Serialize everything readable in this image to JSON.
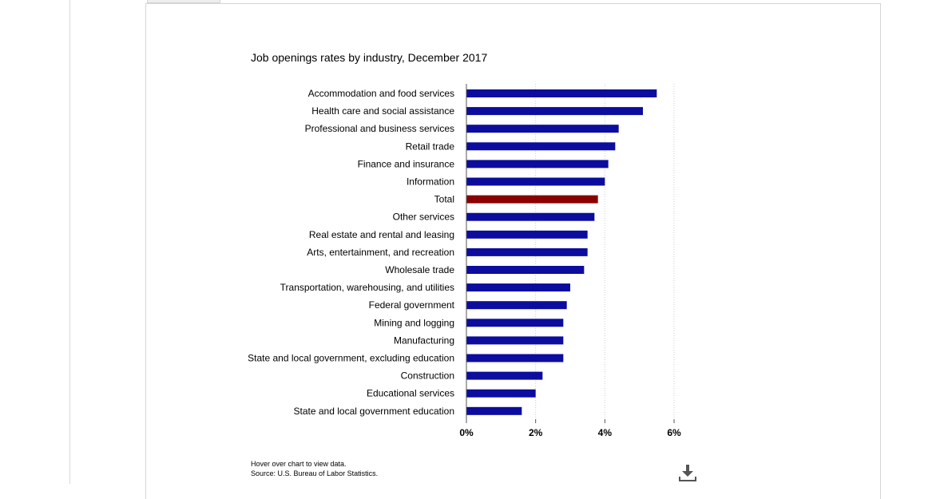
{
  "chart_data": {
    "type": "bar",
    "orientation": "horizontal",
    "title": "Job openings rates by industry, December 2017",
    "categories": [
      "Accommodation and food services",
      "Health care and social assistance",
      "Professional and business services",
      "Retail trade",
      "Finance and insurance",
      "Information",
      "Total",
      "Other services",
      "Real estate and rental and leasing",
      "Arts, entertainment, and recreation",
      "Wholesale trade",
      "Transportation, warehousing, and utilities",
      "Federal government",
      "Mining and logging",
      "Manufacturing",
      "State and local government, excluding education",
      "Construction",
      "Educational services",
      "State and local government education"
    ],
    "values": [
      5.5,
      5.1,
      4.4,
      4.3,
      4.1,
      4.0,
      3.8,
      3.7,
      3.5,
      3.5,
      3.4,
      3.0,
      2.9,
      2.8,
      2.8,
      2.8,
      2.2,
      2.0,
      1.6
    ],
    "xlim": [
      0,
      6
    ],
    "ticks": [
      0,
      2,
      4,
      6
    ],
    "tick_labels": [
      "0%",
      "2%",
      "4%",
      "6%"
    ],
    "grid": true,
    "colors": {
      "default": "#0c0c9e",
      "highlight": "#8b0000"
    },
    "highlight_category": "Total"
  },
  "footnotes": {
    "hover": "Hover over chart to view data.",
    "source": "Source: U.S. Bureau of Labor Statistics."
  },
  "download": {
    "icon": "download-icon"
  }
}
